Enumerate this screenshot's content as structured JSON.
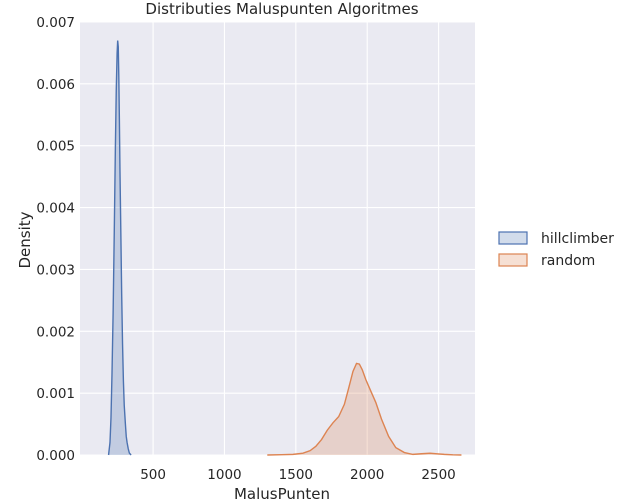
{
  "chart_data": {
    "type": "area",
    "title": "Distributies Maluspunten Algoritmes",
    "xlabel": "MalusPunten",
    "ylabel": "Density",
    "xlim": [
      -12,
      2755
    ],
    "ylim": [
      0,
      0.007
    ],
    "x_ticks": [
      "500",
      "1000",
      "1500",
      "2000",
      "2500"
    ],
    "x_tick_values": [
      500,
      1000,
      1500,
      2000,
      2500
    ],
    "y_ticks": [
      "0.000",
      "0.001",
      "0.002",
      "0.003",
      "0.004",
      "0.005",
      "0.006",
      "0.007"
    ],
    "y_tick_values": [
      0,
      0.001,
      0.002,
      0.003,
      0.004,
      0.005,
      0.006,
      0.007
    ],
    "grid": true,
    "legend_position": "right",
    "series": [
      {
        "name": "hillclimber",
        "color": "#4c72b0",
        "fill": "#4c72b0",
        "x": [
          188,
          198,
          205,
          212,
          220,
          228,
          236,
          242,
          248,
          252,
          256,
          260,
          264,
          268,
          274,
          280,
          286,
          292,
          298,
          306,
          312,
          318,
          326,
          334,
          346
        ],
        "y": [
          0,
          0.0002,
          0.0006,
          0.0013,
          0.0023,
          0.0036,
          0.005,
          0.0059,
          0.0065,
          0.0067,
          0.0066,
          0.0061,
          0.0054,
          0.0046,
          0.0036,
          0.0026,
          0.0018,
          0.0012,
          0.0008,
          0.0005,
          0.0003,
          0.0002,
          0.0001,
          3e-05,
          0
        ]
      },
      {
        "name": "random",
        "color": "#dd8452",
        "fill": "#dd8452",
        "x": [
          1300,
          1400,
          1480,
          1550,
          1600,
          1640,
          1680,
          1720,
          1760,
          1800,
          1840,
          1870,
          1900,
          1925,
          1945,
          1965,
          1990,
          2020,
          2060,
          2100,
          2150,
          2200,
          2260,
          2320,
          2380,
          2440,
          2490,
          2540,
          2600,
          2660
        ],
        "y": [
          0,
          5e-06,
          1e-05,
          3e-05,
          7e-05,
          0.00014,
          0.00025,
          0.0004,
          0.00052,
          0.00062,
          0.00082,
          0.00108,
          0.00135,
          0.00148,
          0.00147,
          0.00138,
          0.00122,
          0.00106,
          0.00085,
          0.00058,
          0.0003,
          0.00012,
          4e-05,
          1e-05,
          2e-05,
          3e-05,
          2e-05,
          1e-05,
          3e-06,
          0
        ]
      }
    ]
  }
}
